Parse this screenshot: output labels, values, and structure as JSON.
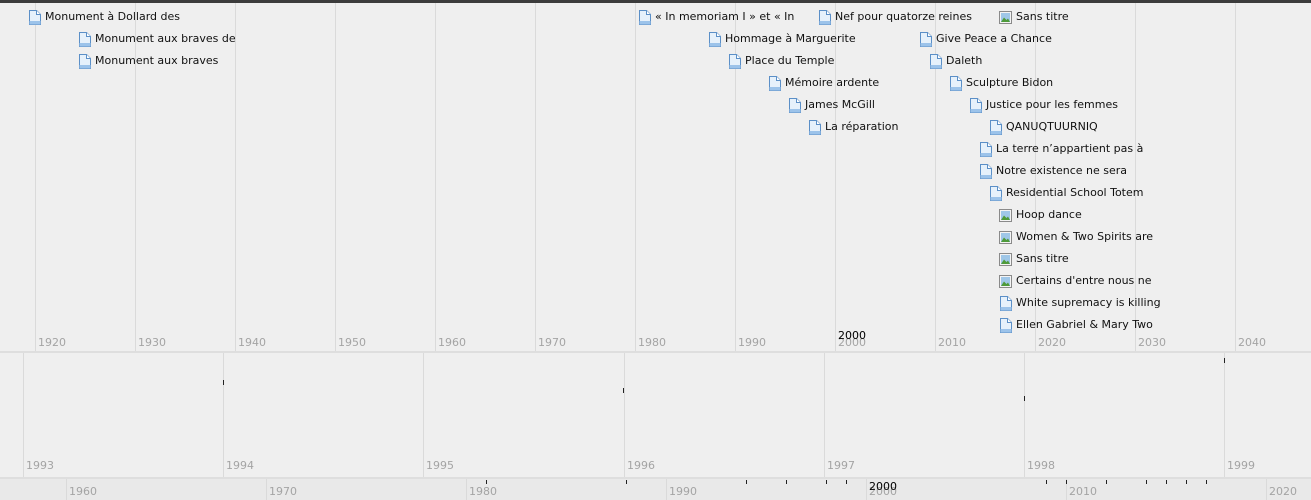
{
  "main_band": {
    "ticks": [
      "1920",
      "1930",
      "1940",
      "1950",
      "1960",
      "1970",
      "1980",
      "1990",
      "2000",
      "2010",
      "2020",
      "2030",
      "2040"
    ],
    "center_label": "2000",
    "events": [
      {
        "title": "Monument à Dollard des",
        "icon": "document-icon",
        "lane": 0
      },
      {
        "title": "Monument aux braves de",
        "icon": "document-icon",
        "lane": 1
      },
      {
        "title": "Monument aux braves",
        "icon": "document-icon",
        "lane": 2
      },
      {
        "title": "« In memoriam I » et « In",
        "icon": "document-icon",
        "lane": 0
      },
      {
        "title": "Hommage à Marguerite",
        "icon": "document-icon",
        "lane": 1
      },
      {
        "title": "Place du Temple",
        "icon": "document-icon",
        "lane": 2
      },
      {
        "title": "Mémoire ardente",
        "icon": "document-icon",
        "lane": 3
      },
      {
        "title": "James McGill",
        "icon": "document-icon",
        "lane": 4
      },
      {
        "title": "La réparation",
        "icon": "document-icon",
        "lane": 5
      },
      {
        "title": "Nef pour quatorze reines",
        "icon": "document-icon",
        "lane": 0
      },
      {
        "title": "Give Peace a Chance",
        "icon": "document-icon",
        "lane": 1
      },
      {
        "title": "Daleth",
        "icon": "document-icon",
        "lane": 2
      },
      {
        "title": "Sculpture Bidon",
        "icon": "document-icon",
        "lane": 3
      },
      {
        "title": "Justice pour les femmes",
        "icon": "document-icon",
        "lane": 4
      },
      {
        "title": "QANUQTUURNIQ",
        "icon": "document-icon",
        "lane": 5
      },
      {
        "title": "La terre n’appartient pas à",
        "icon": "document-icon",
        "lane": 6
      },
      {
        "title": "Notre existence ne sera",
        "icon": "document-icon",
        "lane": 7
      },
      {
        "title": "Residential School Totem",
        "icon": "document-icon",
        "lane": 8
      },
      {
        "title": "Sans titre",
        "icon": "image-icon",
        "lane": 0
      },
      {
        "title": "Hoop dance",
        "icon": "image-icon",
        "lane": 9
      },
      {
        "title": "Women & Two Spirits are",
        "icon": "image-icon",
        "lane": 10
      },
      {
        "title": "Sans titre",
        "icon": "image-icon",
        "lane": 11
      },
      {
        "title": "Certains d'entre nous ne",
        "icon": "image-icon",
        "lane": 12
      },
      {
        "title": "White supremacy is killing",
        "icon": "document-icon",
        "lane": 13
      },
      {
        "title": "Ellen Gabriel & Mary Two",
        "icon": "document-icon",
        "lane": 14
      }
    ]
  },
  "mid_band": {
    "ticks": [
      "1993",
      "1994",
      "1995",
      "1996",
      "1997",
      "1998",
      "1999"
    ]
  },
  "bottom_band": {
    "ticks": [
      "1960",
      "1970",
      "1980",
      "1990",
      "2000",
      "2010",
      "2020"
    ],
    "center_label": "2000"
  },
  "colors": {
    "background": "#efefef",
    "gridline": "#dadada",
    "tick_text": "#a4a4a4",
    "doc_icon_fill": "#e6f1fb",
    "doc_icon_stroke": "#5b8fc7",
    "image_icon_green": "#4e9a3a"
  }
}
